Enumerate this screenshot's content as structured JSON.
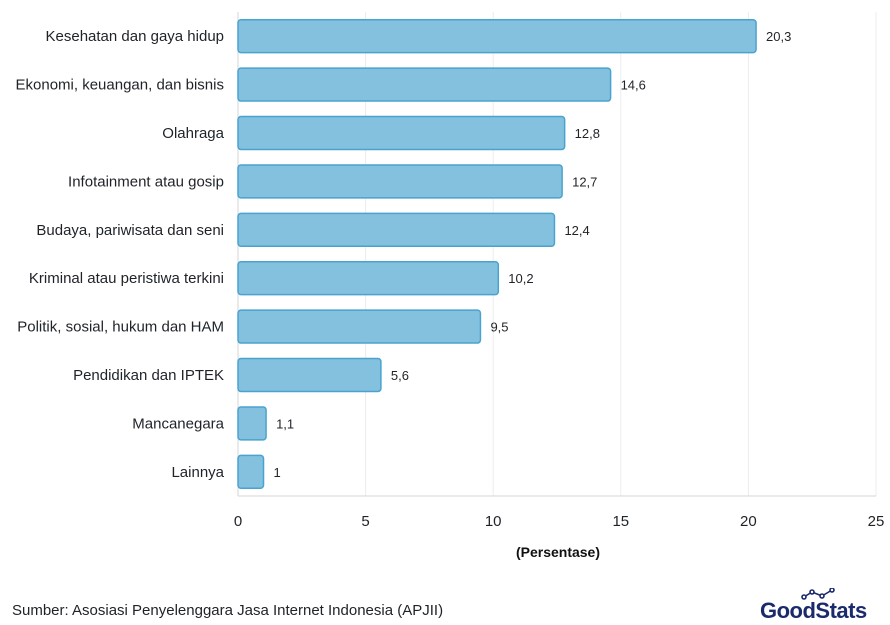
{
  "chart_data": {
    "type": "bar",
    "orientation": "horizontal",
    "categories": [
      "Kesehatan dan gaya hidup",
      "Ekonomi, keuangan, dan bisnis",
      "Olahraga",
      "Infotainment atau gosip",
      "Budaya, pariwisata dan seni",
      "Kriminal atau peristiwa terkini",
      "Politik, sosial, hukum dan HAM",
      "Pendidikan dan IPTEK",
      "Mancanegara",
      "Lainnya"
    ],
    "values": [
      20.3,
      14.6,
      12.8,
      12.7,
      12.4,
      10.2,
      9.5,
      5.6,
      1.1,
      1
    ],
    "value_labels": [
      "20,3",
      "14,6",
      "12,8",
      "12,7",
      "12,4",
      "10,2",
      "9,5",
      "5,6",
      "1,1",
      "1"
    ],
    "xlabel": "(Persentase)",
    "xlim": [
      0,
      25
    ],
    "xticks": [
      0,
      5,
      10,
      15,
      20,
      25
    ],
    "grid": "vertical",
    "bar_color": "#83c1de",
    "bar_edge_color": "#4aa3cf"
  },
  "footer": {
    "source": "Sumber: Asosiasi Penyelenggara Jasa Internet Indonesia (APJII)",
    "brand_logo": "GoodStats"
  }
}
